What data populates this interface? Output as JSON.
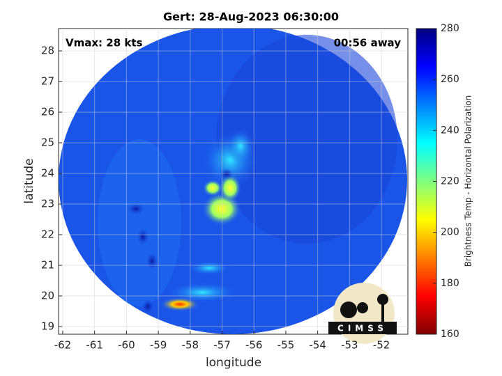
{
  "chart_data": {
    "type": "image",
    "title": "Gert: 28-Aug-2023 06:30:00",
    "x_label": "longitude",
    "y_label": "latitude",
    "annotations": [
      "Vmax: 28 kts",
      "00:56 away"
    ],
    "logo_text": "CIMSS",
    "xlim": [
      -62.13,
      -51.17
    ],
    "xticks": [
      -62,
      -61,
      -60,
      -59,
      -58,
      -57,
      -56,
      -55,
      -54,
      -53,
      -52
    ],
    "ylim": [
      18.75,
      28.73
    ],
    "yticks": [
      19,
      20,
      21,
      22,
      23,
      24,
      25,
      26,
      27,
      28
    ],
    "grid": true,
    "colorbar": {
      "label": "Brightness Temp - Horizontal Polarization",
      "clim": [
        160,
        280
      ],
      "ticks": [
        160,
        180,
        200,
        220,
        240,
        260,
        280
      ],
      "colormap": [
        "#800000",
        "#ff0000",
        "#ff8000",
        "#ffff00",
        "#80ff80",
        "#00ffff",
        "#0080ff",
        "#0000ff",
        "#000080"
      ]
    }
  }
}
